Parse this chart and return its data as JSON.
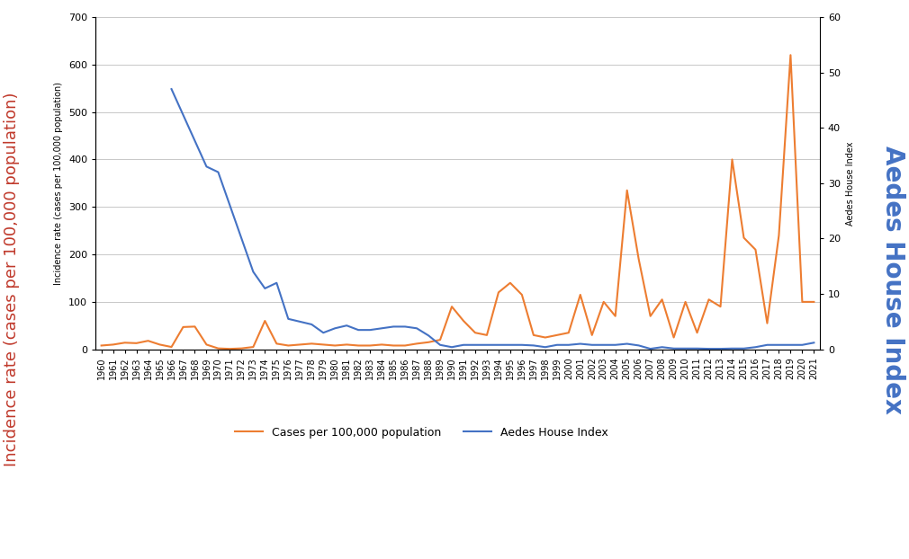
{
  "years": [
    1960,
    1961,
    1962,
    1963,
    1964,
    1965,
    1966,
    1967,
    1968,
    1969,
    1970,
    1971,
    1972,
    1973,
    1974,
    1975,
    1976,
    1977,
    1978,
    1979,
    1980,
    1981,
    1982,
    1983,
    1984,
    1985,
    1986,
    1987,
    1988,
    1989,
    1990,
    1991,
    1992,
    1993,
    1994,
    1995,
    1996,
    1997,
    1998,
    1999,
    2000,
    2001,
    2002,
    2003,
    2004,
    2005,
    2006,
    2007,
    2008,
    2009,
    2010,
    2011,
    2012,
    2013,
    2014,
    2015,
    2016,
    2017,
    2018,
    2019,
    2020,
    2021
  ],
  "cases_per_100k": [
    8,
    10,
    14,
    13,
    18,
    10,
    5,
    47,
    48,
    10,
    2,
    1,
    2,
    5,
    60,
    12,
    8,
    10,
    12,
    10,
    8,
    10,
    8,
    8,
    10,
    8,
    8,
    12,
    15,
    20,
    90,
    60,
    35,
    30,
    120,
    140,
    115,
    30,
    25,
    30,
    35,
    115,
    30,
    100,
    70,
    335,
    190,
    70,
    105,
    25,
    100,
    35,
    105,
    90,
    400,
    235,
    210,
    55,
    240,
    620,
    100,
    100
  ],
  "aedes_house_index": [
    null,
    null,
    null,
    null,
    null,
    null,
    47,
    null,
    null,
    33,
    32,
    null,
    null,
    14,
    11,
    12,
    5.5,
    5,
    4.5,
    3,
    3.8,
    4.3,
    3.5,
    3.5,
    3.8,
    4.1,
    4.1,
    3.8,
    2.5,
    0.8,
    0.4,
    0.8,
    0.8,
    0.8,
    0.8,
    0.8,
    0.8,
    0.7,
    0.4,
    0.8,
    0.8,
    1.0,
    0.8,
    0.8,
    0.8,
    1.0,
    0.7,
    0.1,
    0.4,
    0.15,
    0.15,
    0.15,
    0.1,
    0.1,
    0.15,
    0.15,
    0.4,
    0.8,
    0.8,
    0.8,
    0.8,
    1.2
  ],
  "orange_color": "#ED7D31",
  "blue_color": "#4472C4",
  "left_ylabel_big": "Incidence rate (cases per 100,000 population)",
  "right_ylabel_big": "Aedes House Index",
  "inner_ylabel": "Incidence rate (cases per 100,000 population)",
  "inner_right_ylabel": "Aedes House Index",
  "ylim_left": [
    0,
    700
  ],
  "ylim_right": [
    0,
    60
  ],
  "yticks_left": [
    0,
    100,
    200,
    300,
    400,
    500,
    600,
    700
  ],
  "yticks_right": [
    0,
    10,
    20,
    30,
    40,
    50,
    60
  ],
  "legend_labels": [
    "Cases per 100,000 population",
    "Aedes House Index"
  ],
  "bg_color": "#FFFFFF",
  "grid_color": "#C8C8C8"
}
